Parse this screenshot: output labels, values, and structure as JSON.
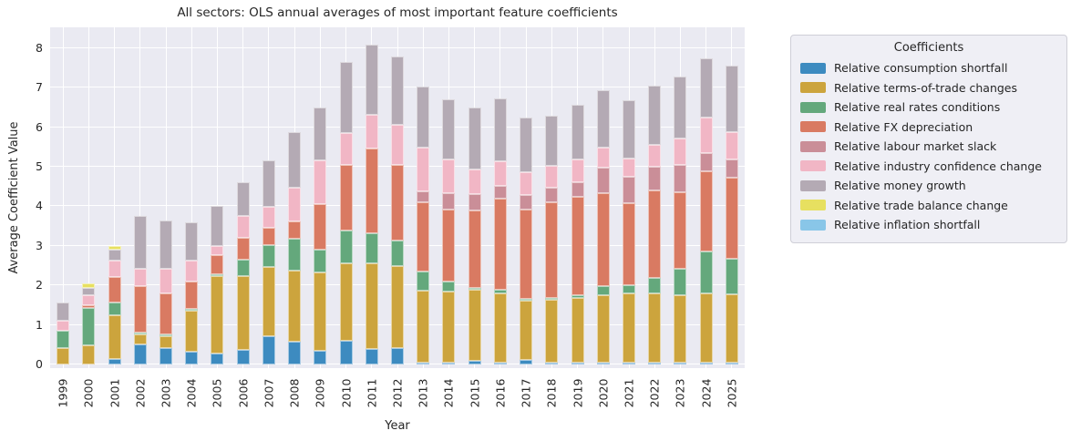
{
  "chart_data": {
    "type": "bar",
    "stacked": true,
    "title": "All sectors: OLS annual averages of most important feature coefficients",
    "xlabel": "Year",
    "ylabel": "Average Coefficient Value",
    "legend_title": "Coefficients",
    "legend_position": "right",
    "grid": true,
    "plot_background": "#eaeaf2",
    "gridline_color": "#ffffff",
    "text_color": "#262626",
    "ylim": [
      0,
      8.5
    ],
    "yticks": [
      0,
      1,
      2,
      3,
      4,
      5,
      6,
      7,
      8
    ],
    "categories": [
      "1999",
      "2000",
      "2001",
      "2002",
      "2003",
      "2004",
      "2005",
      "2006",
      "2007",
      "2008",
      "2009",
      "2010",
      "2011",
      "2012",
      "2013",
      "2014",
      "2015",
      "2016",
      "2017",
      "2018",
      "2019",
      "2020",
      "2021",
      "2022",
      "2023",
      "2024",
      "2025"
    ],
    "series": [
      {
        "name": "Relative consumption shortfall",
        "color": "#3d8bc0",
        "values": [
          0,
          0,
          0.15,
          0.5,
          0.42,
          0.33,
          0.28,
          0.38,
          0.71,
          0.58,
          0.35,
          0.61,
          0.4,
          0.42,
          0.04,
          0.04,
          0.09,
          0.04,
          0.12,
          0.01,
          0.02,
          0.04,
          0.02,
          0.02,
          0.02,
          0.02,
          0.02
        ]
      },
      {
        "name": "Relative terms-of-trade changes",
        "color": "#cca43d",
        "values": [
          0.41,
          0.48,
          1.1,
          0.25,
          0.29,
          1.03,
          1.95,
          1.85,
          1.75,
          1.8,
          1.97,
          1.94,
          2.15,
          2.08,
          1.82,
          1.79,
          1.79,
          1.74,
          1.5,
          1.6,
          1.63,
          1.71,
          1.76,
          1.76,
          1.71,
          1.76,
          1.73
        ]
      },
      {
        "name": "Relative real rates conditions",
        "color": "#64a87c",
        "values": [
          0.44,
          0.96,
          0.32,
          0.03,
          0.02,
          0.01,
          0.01,
          0.42,
          0.57,
          0.81,
          0.58,
          0.83,
          0.77,
          0.63,
          0.48,
          0.26,
          0.06,
          0.1,
          0.04,
          0.02,
          0.08,
          0.23,
          0.2,
          0.38,
          0.67,
          1.05,
          0.9
        ]
      },
      {
        "name": "Relative FX depreciation",
        "color": "#d97a62",
        "values": [
          0,
          0.06,
          0.64,
          1.18,
          1.04,
          0.7,
          0.5,
          0.55,
          0.43,
          0.42,
          1.15,
          1.67,
          2.15,
          1.92,
          1.75,
          1.83,
          1.96,
          2.3,
          2.26,
          2.42,
          2.48,
          2.35,
          2.08,
          2.22,
          1.94,
          2.02,
          2.05
        ]
      },
      {
        "name": "Relative labour market slack",
        "color": "#ca8e98",
        "values": [
          0,
          0,
          0,
          0,
          0,
          0,
          0,
          0,
          0,
          0,
          0,
          0,
          0,
          0,
          0.29,
          0.4,
          0.41,
          0.33,
          0.35,
          0.35,
          0.38,
          0.64,
          0.66,
          0.59,
          0.67,
          0.46,
          0.46
        ]
      },
      {
        "name": "Relative industry confidence change",
        "color": "#f1b6c5",
        "values": [
          0.26,
          0.25,
          0.42,
          0.44,
          0.63,
          0.52,
          0.21,
          0.55,
          0.53,
          0.86,
          1.12,
          0.8,
          0.85,
          1.0,
          1.09,
          0.87,
          0.63,
          0.62,
          0.58,
          0.57,
          0.58,
          0.51,
          0.46,
          0.55,
          0.69,
          0.9,
          0.68
        ]
      },
      {
        "name": "Relative money growth",
        "color": "#b4aab4",
        "values": [
          0.46,
          0.19,
          0.27,
          1.33,
          1.21,
          0.98,
          1.02,
          0.85,
          1.18,
          1.41,
          1.33,
          1.81,
          1.77,
          1.73,
          1.55,
          1.51,
          1.57,
          1.6,
          1.4,
          1.25,
          1.37,
          1.46,
          1.47,
          1.5,
          1.56,
          1.51,
          1.69
        ]
      },
      {
        "name": "Relative trade balance change",
        "color": "#e7e060",
        "values": [
          0,
          0.11,
          0.1,
          0,
          0,
          0,
          0,
          0,
          0,
          0,
          0,
          0,
          0,
          0,
          0,
          0,
          0,
          0,
          0,
          0,
          0,
          0,
          0,
          0,
          0,
          0,
          0
        ]
      },
      {
        "name": "Relative inflation shortfall",
        "color": "#89c6e8",
        "values": [
          0,
          0,
          0,
          0,
          0,
          0,
          0,
          0,
          0,
          0,
          0,
          0,
          0,
          0,
          0,
          0,
          0,
          0,
          0,
          0,
          0,
          0,
          0,
          0,
          0,
          0,
          0
        ]
      }
    ]
  }
}
